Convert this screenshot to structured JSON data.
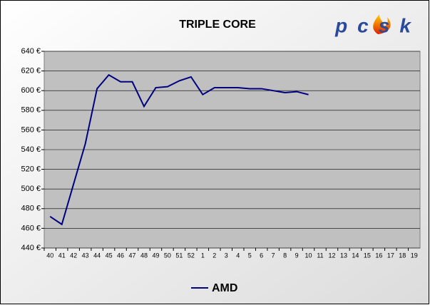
{
  "chart_data": {
    "type": "line",
    "title": "TRIPLE CORE",
    "logo": "pcsk",
    "categories": [
      "40",
      "41",
      "42",
      "43",
      "44",
      "45",
      "46",
      "47",
      "48",
      "49",
      "50",
      "51",
      "52",
      "1",
      "2",
      "3",
      "4",
      "5",
      "6",
      "7",
      "8",
      "9",
      "10",
      "11",
      "12",
      "13",
      "14",
      "15",
      "16",
      "17",
      "18",
      "19"
    ],
    "series": [
      {
        "name": "AMD",
        "color": "#000080",
        "values": [
          472,
          464,
          505,
          546,
          602,
          616,
          609,
          609,
          584,
          603,
          604,
          610,
          614,
          596,
          603,
          603,
          603,
          602,
          602,
          600,
          598,
          599,
          596,
          null,
          null,
          null,
          null,
          null,
          null,
          null,
          null,
          null
        ]
      }
    ],
    "ylim": [
      440,
      640
    ],
    "yticks": [
      {
        "value": 440,
        "label": "440 €"
      },
      {
        "value": 460,
        "label": "460 €"
      },
      {
        "value": 480,
        "label": "480 €"
      },
      {
        "value": 500,
        "label": "500 €"
      },
      {
        "value": 520,
        "label": "520 €"
      },
      {
        "value": 540,
        "label": "540 €"
      },
      {
        "value": 560,
        "label": "560 €"
      },
      {
        "value": 580,
        "label": "580 €"
      },
      {
        "value": 600,
        "label": "600 €"
      },
      {
        "value": 620,
        "label": "620 €"
      },
      {
        "value": 640,
        "label": "640 €"
      }
    ],
    "grid": true,
    "legend": "bottom"
  }
}
